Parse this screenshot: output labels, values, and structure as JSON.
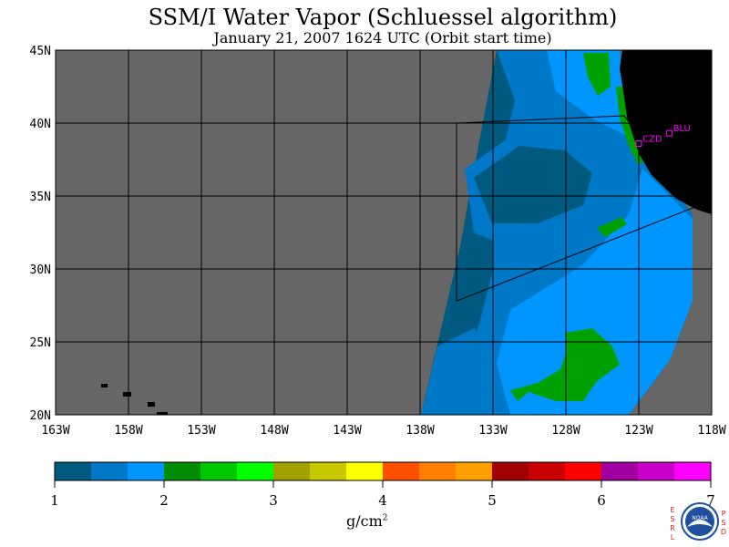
{
  "title": "SSM/I Water Vapor (Schluessel algorithm)",
  "subtitle": "January 21, 2007  1624 UTC  (Orbit start time)",
  "map": {
    "lon_range": [
      -163,
      -118
    ],
    "lat_range": [
      20,
      45
    ],
    "lon_ticks": [
      {
        "value": -163,
        "label": "163W"
      },
      {
        "value": -158,
        "label": "158W"
      },
      {
        "value": -153,
        "label": "153W"
      },
      {
        "value": -148,
        "label": "148W"
      },
      {
        "value": -143,
        "label": "143W"
      },
      {
        "value": -138,
        "label": "138W"
      },
      {
        "value": -133,
        "label": "133W"
      },
      {
        "value": -128,
        "label": "128W"
      },
      {
        "value": -123,
        "label": "123W"
      },
      {
        "value": -118,
        "label": "118W"
      }
    ],
    "lat_ticks": [
      {
        "value": 20,
        "label": "20N"
      },
      {
        "value": 25,
        "label": "25N"
      },
      {
        "value": 30,
        "label": "30N"
      },
      {
        "value": 35,
        "label": "35N"
      },
      {
        "value": 40,
        "label": "40N"
      },
      {
        "value": 45,
        "label": "45N"
      }
    ],
    "grid": true,
    "colors": {
      "nodata": "#666666",
      "land": "#000000",
      "grid": "#000000",
      "wv_1_1.5": "#005a80",
      "wv_1.5_2": "#0078c8",
      "wv_2_2.5": "#0096ff",
      "wv_2.5_3": "#00a000",
      "station": "#ff00ff"
    },
    "stations": [
      {
        "name": "CZD",
        "lon": -123.0,
        "lat": 38.6
      },
      {
        "name": "BLU",
        "lon": -120.9,
        "lat": 39.3
      }
    ],
    "outline": [
      [
        -135.5,
        40.0
      ],
      [
        -124.0,
        40.5
      ],
      [
        -119.0,
        34.3
      ],
      [
        -135.5,
        27.8
      ]
    ]
  },
  "colorbar": {
    "bins": [
      "#005a80",
      "#0078c8",
      "#0096ff",
      "#008c00",
      "#00c800",
      "#00ff00",
      "#a0a000",
      "#c8c800",
      "#ffff00",
      "#ff5000",
      "#ff8000",
      "#ffa000",
      "#a00000",
      "#c80000",
      "#ff0000",
      "#a000a0",
      "#c800c8",
      "#ff00ff"
    ],
    "tick_labels": [
      "1",
      "2",
      "3",
      "4",
      "5",
      "6",
      "7"
    ],
    "units_base": "g/cm",
    "units_exp": "2"
  },
  "logo": {
    "left_letters": [
      "E",
      "S",
      "R",
      "L"
    ],
    "right_letters": [
      "P",
      "S",
      "D"
    ],
    "badge": "NOAA"
  }
}
